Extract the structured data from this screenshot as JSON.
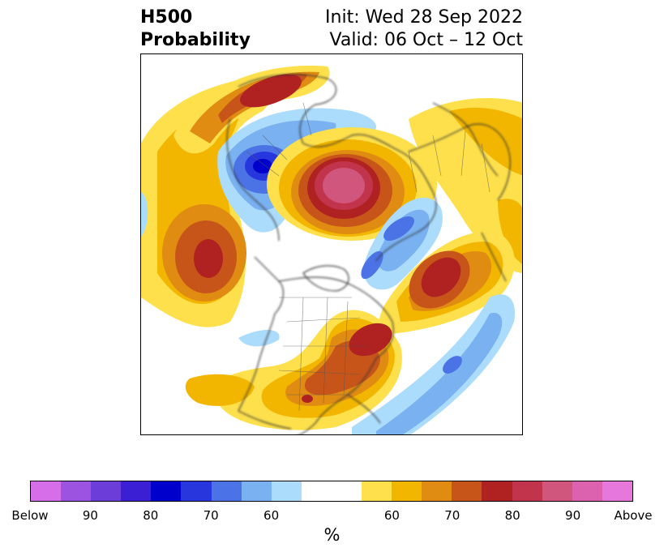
{
  "header": {
    "title_line1": "H500",
    "title_line2": "Probability",
    "init": "Init: Wed 28 Sep 2022",
    "valid": "Valid: 06 Oct – 12 Oct"
  },
  "map": {
    "projection": "north polar stereographic",
    "colors": {
      "below_light": "#acdcfc",
      "below_mid": "#79b1f1",
      "below_strong": "#4b73e6",
      "below_deep": "#2837dd",
      "below_core": "#0000cc",
      "above_light": "#fde04b",
      "above_mid": "#f2b600",
      "above_orange": "#e08c12",
      "above_dark": "#c7551a",
      "above_red": "#b02222",
      "above_crimson": "#c2344c",
      "above_pink": "#d0567e",
      "coast": "#333333"
    }
  },
  "colorbar": {
    "segments": [
      {
        "label": "Below",
        "color": "#d56ee8"
      },
      {
        "label": "",
        "color": "#9c54e0"
      },
      {
        "label": "",
        "color": "#6b3ed9"
      },
      {
        "label": "",
        "color": "#3a1fd4"
      },
      {
        "label": "",
        "color": "#0000cc"
      },
      {
        "label": "",
        "color": "#2837dd"
      },
      {
        "label": "",
        "color": "#4b73e6"
      },
      {
        "label": "",
        "color": "#79b1f1"
      },
      {
        "label": "",
        "color": "#acdcfc"
      },
      {
        "label": "",
        "color": "#ffffff",
        "neutral": true
      },
      {
        "label": "",
        "color": "#fde04b"
      },
      {
        "label": "",
        "color": "#f2b600"
      },
      {
        "label": "",
        "color": "#e08c12"
      },
      {
        "label": "",
        "color": "#c7551a"
      },
      {
        "label": "",
        "color": "#b02222"
      },
      {
        "label": "",
        "color": "#c2344c"
      },
      {
        "label": "",
        "color": "#d0567e"
      },
      {
        "label": "",
        "color": "#dc61ae"
      },
      {
        "label": "",
        "color": "#e678dc"
      }
    ],
    "ticks": [
      "Below",
      "90",
      "80",
      "70",
      "60",
      "60",
      "70",
      "80",
      "90",
      "Above"
    ],
    "unit": "%"
  }
}
